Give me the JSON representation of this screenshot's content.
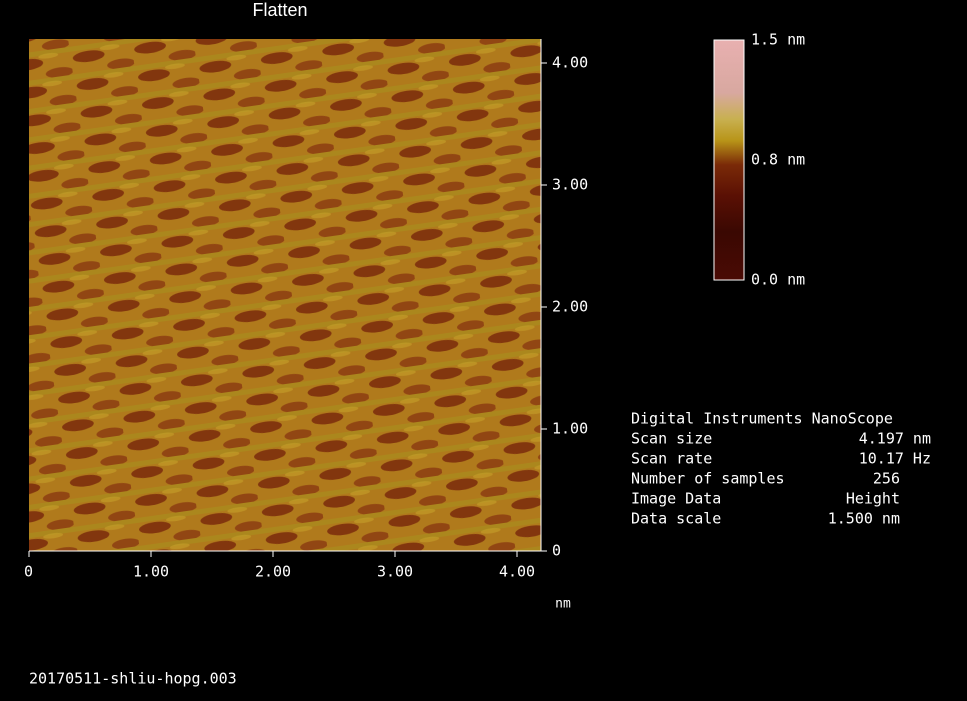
{
  "title": "Flatten",
  "x_axis": {
    "unit": "nm",
    "ticks": [
      0,
      {
        "value": 1,
        "label": "1.00"
      },
      {
        "value": 2,
        "label": "2.00"
      },
      {
        "value": 3,
        "label": "3.00"
      },
      {
        "value": 4,
        "label": "4.00"
      }
    ]
  },
  "y_axis": {
    "ticks": [
      0,
      {
        "value": 1,
        "label": "1.00"
      },
      {
        "value": 2,
        "label": "2.00"
      },
      {
        "value": 3,
        "label": "3.00"
      },
      {
        "value": 4,
        "label": "4.00"
      }
    ]
  },
  "colorbar": {
    "labels": [
      "1.5 nm",
      "0.8 nm",
      "0.0 nm"
    ]
  },
  "info": {
    "header": "Digital Instruments NanoScope",
    "rows": [
      [
        "Scan size",
        "4.197 nm"
      ],
      [
        "Scan rate",
        "10.17 Hz"
      ],
      [
        "Number of samples",
        "256"
      ],
      [
        "Image Data",
        "Height"
      ],
      [
        "Data scale",
        "1.500 nm"
      ]
    ]
  },
  "filename": "20170511-shliu-hopg.003"
}
